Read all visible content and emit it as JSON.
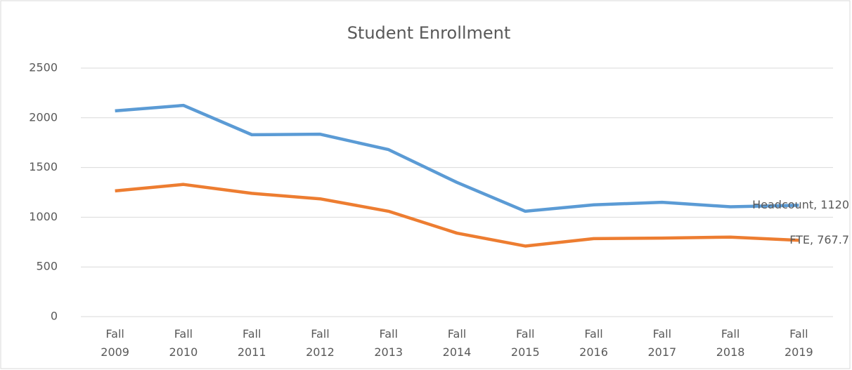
{
  "chart_data": {
    "type": "line",
    "title": "Student Enrollment",
    "categories": [
      "Fall 2009",
      "Fall 2010",
      "Fall 2011",
      "Fall 2012",
      "Fall 2013",
      "Fall 2014",
      "Fall 2015",
      "Fall 2016",
      "Fall 2017",
      "Fall 2018",
      "Fall 2019"
    ],
    "series": [
      {
        "name": "Headcount",
        "color": "#5b9bd5",
        "values": [
          2070,
          2125,
          1830,
          1835,
          1680,
          1350,
          1060,
          1125,
          1150,
          1105,
          1120
        ],
        "value_labels": [
          null,
          null,
          null,
          null,
          null,
          null,
          null,
          null,
          null,
          null,
          "Headcount, 1120"
        ]
      },
      {
        "name": "FTE",
        "color": "#ed7d31",
        "values": [
          1265,
          1330,
          1240,
          1185,
          1060,
          840,
          710,
          785,
          790,
          800,
          767.7
        ],
        "value_labels": [
          null,
          null,
          null,
          null,
          null,
          null,
          null,
          null,
          null,
          null,
          "FTE, 767.7"
        ]
      }
    ],
    "ylim": [
      0,
      2500
    ],
    "yticks": [
      0,
      500,
      1000,
      1500,
      2000,
      2500
    ],
    "grid": true
  }
}
